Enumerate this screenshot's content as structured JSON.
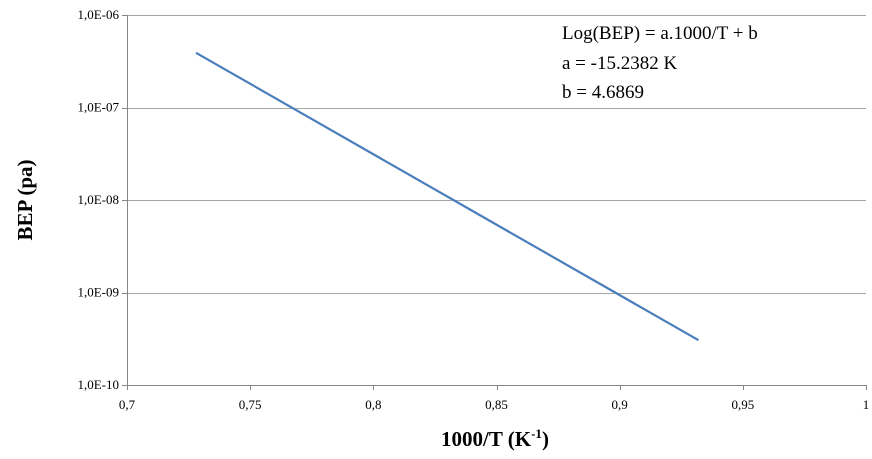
{
  "chart_data": {
    "type": "line",
    "x_label_main": "1000/T (K",
    "x_label_sup": "-1",
    "x_label_close": ")",
    "ylabel": "BEP (pa)",
    "xlim": [
      0.7,
      1.0
    ],
    "ylim": [
      1e-10,
      1e-06
    ],
    "y_scale": "log",
    "grid": "horizontal",
    "x_ticks": [
      0.7,
      0.75,
      0.8,
      0.85,
      0.9,
      0.95,
      1.0
    ],
    "x_tick_labels": [
      "0,7",
      "0,75",
      "0,8",
      "0,85",
      "0,9",
      "0,95",
      "1"
    ],
    "y_ticks": [
      1e-10,
      1e-09,
      1e-08,
      1e-07,
      1e-06
    ],
    "y_tick_labels": [
      "1,0E-10",
      "1,0E-09",
      "1,0E-08",
      "1,0E-07",
      "1,0E-06"
    ],
    "series": [
      {
        "color": "#4a7ebb",
        "x": [
          0.728,
          0.932
        ],
        "y": [
          3.9e-07,
          3.05e-10
        ]
      }
    ],
    "annotation": [
      "Log(BEP) = a.1000/T + b",
      "a = -15.2382 K",
      "b = 4.6869"
    ]
  }
}
